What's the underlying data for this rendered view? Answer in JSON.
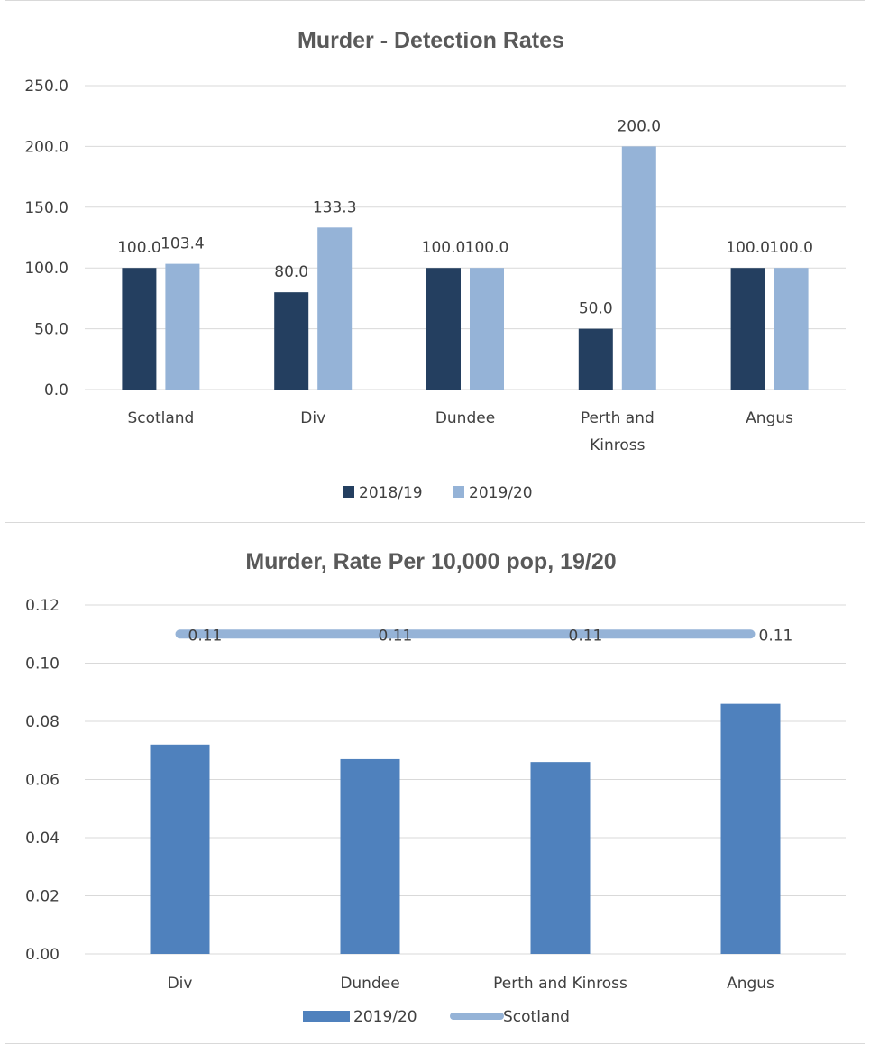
{
  "chart_data": [
    {
      "type": "bar",
      "title": "Murder - Detection Rates",
      "categories": [
        [
          "Scotland"
        ],
        [
          "Div"
        ],
        [
          "Dundee"
        ],
        [
          "Perth and",
          "Kinross"
        ],
        [
          "Angus"
        ]
      ],
      "series": [
        {
          "name": "2018/19",
          "color": "#243f60",
          "values": [
            100.0,
            80.0,
            100.0,
            50.0,
            100.0
          ],
          "labels": [
            "100.0",
            "80.0",
            "100.0",
            "50.0",
            "100.0"
          ]
        },
        {
          "name": "2019/20",
          "color": "#95b3d7",
          "values": [
            103.4,
            133.3,
            100.0,
            200.0,
            100.0
          ],
          "labels": [
            "103.4",
            "133.3",
            "100.0",
            "200.0",
            "100.0"
          ]
        }
      ],
      "ylim": [
        0,
        250
      ],
      "yticks": [
        "0.0",
        "50.0",
        "100.0",
        "150.0",
        "200.0",
        "250.0"
      ],
      "legend": "bottom",
      "grid": true
    },
    {
      "type": "bar",
      "title": "Murder, Rate Per 10,000 pop, 19/20",
      "categories": [
        [
          "Div"
        ],
        [
          "Dundee"
        ],
        [
          "Perth and Kinross"
        ],
        [
          "Angus"
        ]
      ],
      "series": [
        {
          "name": "2019/20",
          "kind": "bar",
          "color": "#4f81bd",
          "values": [
            0.072,
            0.067,
            0.066,
            0.086
          ]
        },
        {
          "name": "Scotland",
          "kind": "line",
          "color": "#95b3d7",
          "values": [
            0.11,
            0.11,
            0.11,
            0.11
          ],
          "labels": [
            "0.11",
            "0.11",
            "0.11",
            "0.11"
          ]
        }
      ],
      "ylim": [
        0,
        0.12
      ],
      "yticks": [
        "0.00",
        "0.02",
        "0.04",
        "0.06",
        "0.08",
        "0.10",
        "0.12"
      ],
      "legend": "bottom",
      "grid": true
    }
  ]
}
